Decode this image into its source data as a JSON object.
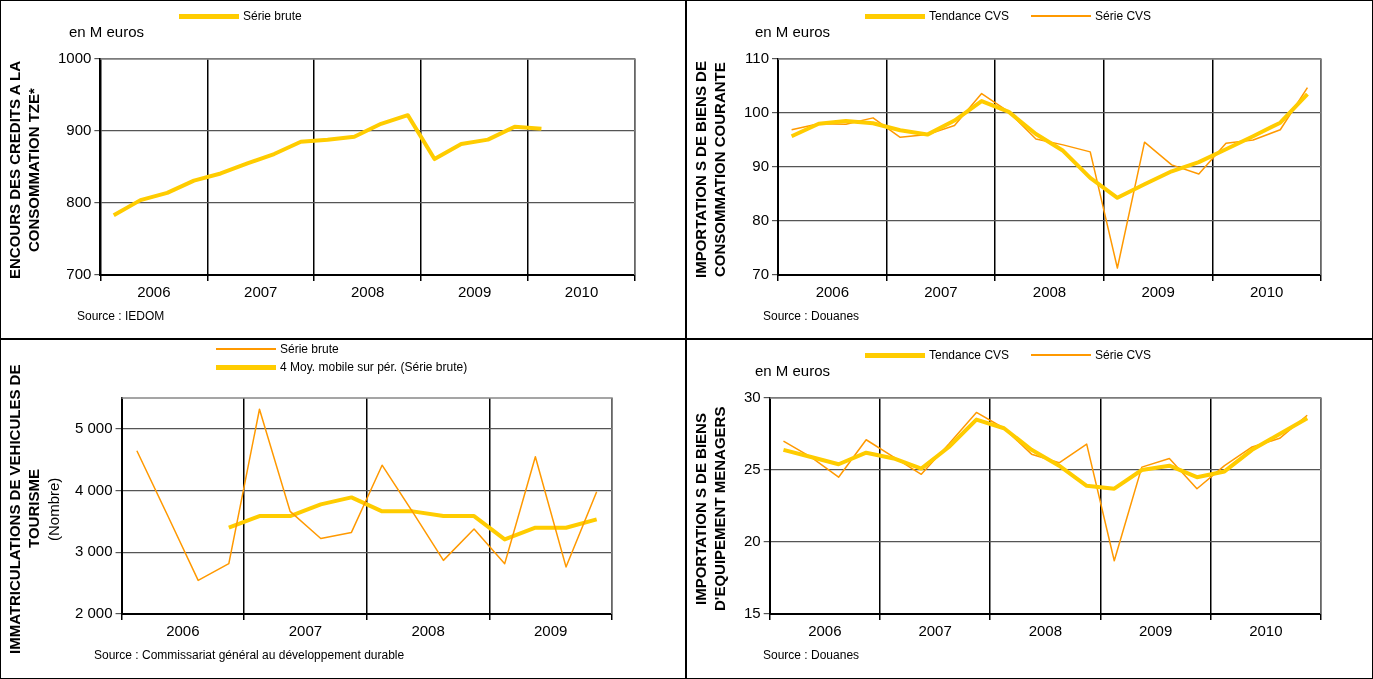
{
  "chart_data": [
    {
      "type": "line",
      "title": "ENCOURS DES CREDITS A LA CONSOMMATION TZE*",
      "ylabel": "en M euros",
      "x": [
        2006.125,
        2006.375,
        2006.625,
        2006.875,
        2007.125,
        2007.375,
        2007.625,
        2007.875,
        2008.125,
        2008.375,
        2008.625,
        2008.875,
        2009.125,
        2009.375,
        2009.625,
        2009.875,
        2010.125
      ],
      "series": [
        {
          "name": "Série brute",
          "color": "#ffcc00",
          "values": [
            783,
            804,
            814,
            831,
            841,
            855,
            868,
            885,
            888,
            892,
            910,
            922,
            861,
            882,
            888,
            906,
            903
          ]
        }
      ],
      "xlim": [
        2006,
        2011
      ],
      "xticks": [
        {
          "value": 2006,
          "label": null
        },
        {
          "value": 2006.5,
          "label": "2006"
        },
        {
          "value": 2007,
          "label": null
        },
        {
          "value": 2007.5,
          "label": "2007"
        },
        {
          "value": 2008,
          "label": null
        },
        {
          "value": 2008.5,
          "label": "2008"
        },
        {
          "value": 2009,
          "label": null
        },
        {
          "value": 2009.5,
          "label": "2009"
        },
        {
          "value": 2010,
          "label": null
        },
        {
          "value": 2010.5,
          "label": "2010"
        },
        {
          "value": 2011,
          "label": null
        }
      ],
      "ylim": [
        700,
        1000
      ],
      "yticks": [
        700,
        800,
        900,
        1000
      ],
      "grid": true,
      "legend": "top",
      "annotations": [
        "Source : IEDOM"
      ]
    },
    {
      "type": "line",
      "title": "IMPORTATION S DE BIENS DE CONSOMMATION COURANTE",
      "ylabel": "en M euros",
      "x": [
        2006.125,
        2006.375,
        2006.625,
        2006.875,
        2007.125,
        2007.375,
        2007.625,
        2007.875,
        2008.125,
        2008.375,
        2008.625,
        2008.875,
        2009.125,
        2009.375,
        2009.625,
        2009.875,
        2010.125,
        2010.375,
        2010.625,
        2010.875
      ],
      "series": [
        {
          "name": "Tendance CVS",
          "color": "#ffcc00",
          "values": [
            95.7,
            98.0,
            98.5,
            98.1,
            96.8,
            96.0,
            98.6,
            102.2,
            100.2,
            96.1,
            93.0,
            88.0,
            84.3,
            86.8,
            89.2,
            90.9,
            93.3,
            95.7,
            98.2,
            103.5
          ]
        },
        {
          "name": "Série CVS",
          "color": "#ff9900",
          "values": [
            96.9,
            98.0,
            97.9,
            99.1,
            95.5,
            96.0,
            97.7,
            103.6,
            100.2,
            95.2,
            94.1,
            92.8,
            71.3,
            94.6,
            90.4,
            88.7,
            94.4,
            95.0,
            96.9,
            104.7
          ]
        }
      ],
      "xlim": [
        2006,
        2011
      ],
      "xticks": [
        {
          "value": 2006,
          "label": null
        },
        {
          "value": 2006.5,
          "label": "2006"
        },
        {
          "value": 2007,
          "label": null
        },
        {
          "value": 2007.5,
          "label": "2007"
        },
        {
          "value": 2008,
          "label": null
        },
        {
          "value": 2008.5,
          "label": "2008"
        },
        {
          "value": 2009,
          "label": null
        },
        {
          "value": 2009.5,
          "label": "2009"
        },
        {
          "value": 2010,
          "label": null
        },
        {
          "value": 2010.5,
          "label": "2010"
        },
        {
          "value": 2011,
          "label": null
        }
      ],
      "ylim": [
        70,
        110
      ],
      "yticks": [
        70,
        80,
        90,
        100,
        110
      ],
      "grid": true,
      "legend": "top",
      "annotations": [
        "Source : Douanes"
      ]
    },
    {
      "type": "line",
      "title": "IMMATRICULATIONS DE VEHICULES DE TOURISME",
      "ylabel": "(Nombre)",
      "x": [
        2006.125,
        2006.375,
        2006.625,
        2006.875,
        2007.125,
        2007.375,
        2007.625,
        2007.875,
        2008.125,
        2008.375,
        2008.625,
        2008.875,
        2009.125,
        2009.375,
        2009.625,
        2009.875
      ],
      "series": [
        {
          "name": "Série brute",
          "color": "#ff9900",
          "values": [
            4645,
            3600,
            2544,
            2816,
            5318,
            3663,
            3224,
            3322,
            4411,
            3650,
            2869,
            3376,
            2816,
            4547,
            2763,
            3980
          ]
        },
        {
          "name": "4 Moy. mobile sur pér. (Série brute)",
          "color": "#ffcc00",
          "values": [
            null,
            null,
            null,
            3398,
            3587,
            3587,
            3776,
            3889,
            3663,
            3663,
            3587,
            3587,
            3209,
            3398,
            3398,
            3534
          ]
        }
      ],
      "xlim": [
        2006,
        2010
      ],
      "xticks": [
        {
          "value": 2006,
          "label": null
        },
        {
          "value": 2006.5,
          "label": "2006"
        },
        {
          "value": 2007,
          "label": null
        },
        {
          "value": 2007.5,
          "label": "2007"
        },
        {
          "value": 2008,
          "label": null
        },
        {
          "value": 2008.5,
          "label": "2008"
        },
        {
          "value": 2009,
          "label": null
        },
        {
          "value": 2009.5,
          "label": "2009"
        },
        {
          "value": 2010,
          "label": null
        }
      ],
      "ylim": [
        2000,
        5500
      ],
      "yticks": [
        {
          "value": 2000,
          "label": "2 000"
        },
        {
          "value": 3000,
          "label": "3 000"
        },
        {
          "value": 4000,
          "label": "4 000"
        },
        {
          "value": 5000,
          "label": "5 000"
        }
      ],
      "grid": true,
      "legend": "top",
      "annotations": [
        "Source : Commissariat général au développement  durable"
      ]
    },
    {
      "type": "line",
      "title": "IMPORTATION S DE BIENS D'EQUIPEMENT MENAGERS",
      "ylabel": "en M euros",
      "x": [
        2006.125,
        2006.375,
        2006.625,
        2006.875,
        2007.125,
        2007.375,
        2007.625,
        2007.875,
        2008.125,
        2008.375,
        2008.625,
        2008.875,
        2009.125,
        2009.375,
        2009.625,
        2009.875,
        2010.125,
        2010.375,
        2010.625,
        2010.875
      ],
      "series": [
        {
          "name": "Tendance CVS",
          "color": "#ffcc00",
          "values": [
            26.4,
            25.9,
            25.4,
            26.2,
            25.8,
            25.1,
            26.6,
            28.5,
            27.9,
            26.4,
            25.3,
            23.9,
            23.7,
            25.0,
            25.3,
            24.5,
            24.9,
            26.4,
            27.5,
            28.6
          ]
        },
        {
          "name": "Série CVS",
          "color": "#ff9900",
          "values": [
            27.0,
            25.9,
            24.5,
            27.1,
            25.9,
            24.7,
            26.8,
            29.0,
            27.9,
            26.1,
            25.5,
            26.8,
            18.7,
            25.2,
            25.8,
            23.7,
            25.3,
            26.6,
            27.2,
            28.8
          ]
        }
      ],
      "xlim": [
        2006,
        2011
      ],
      "xticks": [
        {
          "value": 2006,
          "label": null
        },
        {
          "value": 2006.5,
          "label": "2006"
        },
        {
          "value": 2007,
          "label": null
        },
        {
          "value": 2007.5,
          "label": "2007"
        },
        {
          "value": 2008,
          "label": null
        },
        {
          "value": 2008.5,
          "label": "2008"
        },
        {
          "value": 2009,
          "label": null
        },
        {
          "value": 2009.5,
          "label": "2009"
        },
        {
          "value": 2010,
          "label": null
        },
        {
          "value": 2010.5,
          "label": "2010"
        },
        {
          "value": 2011,
          "label": null
        }
      ],
      "ylim": [
        15,
        30
      ],
      "yticks": [
        15,
        20,
        25,
        30
      ],
      "grid": true,
      "legend": "top",
      "annotations": [
        "Source : Douanes"
      ]
    }
  ]
}
